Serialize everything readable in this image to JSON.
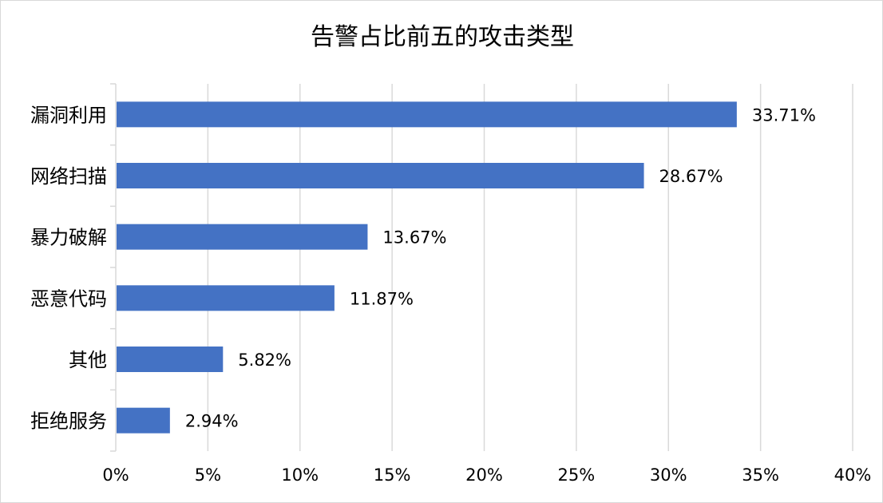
{
  "chart_data": {
    "type": "bar",
    "orientation": "horizontal",
    "title": "告警占比前五的攻击类型",
    "xlabel": "",
    "ylabel": "",
    "categories": [
      "漏洞利用",
      "网络扫描",
      "暴力破解",
      "恶意代码",
      "其他",
      "拒绝服务"
    ],
    "values": [
      33.71,
      28.67,
      13.67,
      11.87,
      5.82,
      2.94
    ],
    "data_labels": [
      "33.71%",
      "28.67%",
      "13.67%",
      "11.87%",
      "5.82%",
      "2.94%"
    ],
    "xlim": [
      0,
      40
    ],
    "x_ticks": [
      0,
      5,
      10,
      15,
      20,
      25,
      30,
      35,
      40
    ],
    "x_tick_labels": [
      "0%",
      "5%",
      "10%",
      "15%",
      "20%",
      "25%",
      "30%",
      "35%",
      "40%"
    ],
    "grid": "vertical",
    "legend": "none",
    "bar_color": "#4472C4",
    "grid_color": "#d9d9d9"
  }
}
